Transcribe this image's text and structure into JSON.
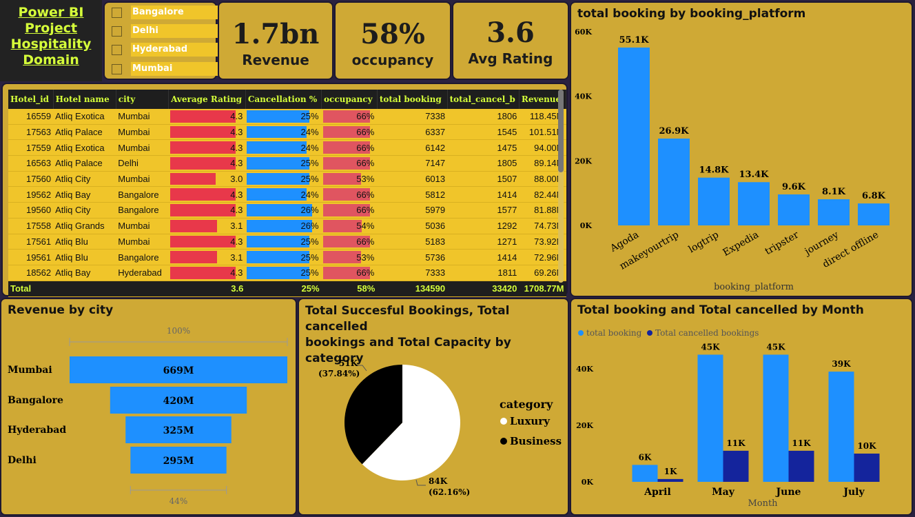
{
  "title_lines": [
    "Power BI",
    "Project",
    "Hospitality",
    "Domain"
  ],
  "slicer": [
    "Bangalore",
    "Delhi",
    "Hyderabad",
    "Mumbai"
  ],
  "kpis": [
    {
      "value": "1.7bn",
      "label": "Revenue"
    },
    {
      "value": "58%",
      "label": "occupancy"
    },
    {
      "value": "3.6",
      "label": "Avg Rating"
    }
  ],
  "table": {
    "columns": [
      "Hotel_id",
      "Hotel name",
      "city",
      "Average Rating",
      "Cancellation %",
      "occupancy",
      "total booking",
      "total_cancel_b",
      "Revenue"
    ],
    "rows": [
      [
        "16559",
        "Atliq Exotica",
        "Mumbai",
        "4.3",
        "25%",
        "66%",
        "7338",
        "1806",
        "118.45M"
      ],
      [
        "17563",
        "Atliq Palace",
        "Mumbai",
        "4.3",
        "24%",
        "66%",
        "6337",
        "1545",
        "101.51M"
      ],
      [
        "17559",
        "Atliq Exotica",
        "Mumbai",
        "4.3",
        "24%",
        "66%",
        "6142",
        "1475",
        "94.00M"
      ],
      [
        "16563",
        "Atliq Palace",
        "Delhi",
        "4.3",
        "25%",
        "66%",
        "7147",
        "1805",
        "89.14M"
      ],
      [
        "17560",
        "Atliq City",
        "Mumbai",
        "3.0",
        "25%",
        "53%",
        "6013",
        "1507",
        "88.00M"
      ],
      [
        "19562",
        "Atliq Bay",
        "Bangalore",
        "4.3",
        "24%",
        "66%",
        "5812",
        "1414",
        "82.44M"
      ],
      [
        "19560",
        "Atliq City",
        "Bangalore",
        "4.3",
        "26%",
        "66%",
        "5979",
        "1577",
        "81.88M"
      ],
      [
        "17558",
        "Atliq Grands",
        "Mumbai",
        "3.1",
        "26%",
        "54%",
        "5036",
        "1292",
        "74.73M"
      ],
      [
        "17561",
        "Atliq Blu",
        "Mumbai",
        "4.3",
        "25%",
        "66%",
        "5183",
        "1271",
        "73.92M"
      ],
      [
        "19561",
        "Atliq Blu",
        "Bangalore",
        "3.1",
        "25%",
        "53%",
        "5736",
        "1414",
        "72.96M"
      ],
      [
        "18562",
        "Atliq Bay",
        "Hyderabad",
        "4.3",
        "25%",
        "66%",
        "7333",
        "1811",
        "69.26M"
      ]
    ],
    "total": [
      "Total",
      "",
      "",
      "3.6",
      "25%",
      "58%",
      "134590",
      "33420",
      "1708.77M"
    ],
    "colors": {
      "rating": "#e8384a",
      "cancel": "#1e90ff",
      "occupancy": "#e05560"
    }
  },
  "platform_chart": {
    "title": "total booking by booking_platform",
    "xlabel": "booking_platform",
    "yticks": [
      "0K",
      "20K",
      "40K",
      "60K"
    ]
  },
  "city_chart": {
    "title": "Revenue by city",
    "top_label": "100%",
    "bottom_label": "44%"
  },
  "pie_chart": {
    "title_lines": [
      "Total Succesful Bookings, Total cancelled",
      "bookings and Total Capacity by category"
    ],
    "legend_title": "category"
  },
  "month_chart": {
    "title": "Total booking and Total cancelled by Month",
    "xlabel": "Month",
    "yticks": [
      "0K",
      "20K",
      "40K"
    ]
  },
  "chart_data": [
    {
      "type": "bar",
      "title": "total booking by booking_platform",
      "xlabel": "booking_platform",
      "ylabel": "",
      "categories": [
        "Agoda",
        "makeyourtrip",
        "logtrip",
        "Expedia",
        "tripster",
        "journey",
        "direct offline"
      ],
      "values": [
        55.1,
        26.9,
        14.8,
        13.4,
        9.6,
        8.1,
        6.8
      ],
      "labels": [
        "55.1K",
        "26.9K",
        "14.8K",
        "13.4K",
        "9.6K",
        "8.1K",
        "6.8K"
      ],
      "ylim": [
        0,
        60
      ],
      "color": "#1e90ff"
    },
    {
      "type": "bar",
      "title": "Revenue by city",
      "categories": [
        "Mumbai",
        "Bangalore",
        "Hyderabad",
        "Delhi"
      ],
      "values": [
        669,
        420,
        325,
        295
      ],
      "labels": [
        "669M",
        "420M",
        "325M",
        "295M"
      ],
      "color": "#1e90ff"
    },
    {
      "type": "pie",
      "title": "Total Succesful Bookings, Total cancelled bookings and Total Capacity by category",
      "categories": [
        "Luxury",
        "Business"
      ],
      "values": [
        84,
        51
      ],
      "labels": [
        "84K\n(62.16%)",
        "51K\n(37.84%)"
      ],
      "percent": [
        62.16,
        37.84
      ],
      "colors": [
        "#ffffff",
        "#000000"
      ]
    },
    {
      "type": "bar",
      "title": "Total booking and Total cancelled by Month",
      "xlabel": "Month",
      "categories": [
        "April",
        "May",
        "June",
        "July"
      ],
      "series": [
        {
          "name": "total booking",
          "values": [
            6,
            45,
            45,
            39
          ],
          "labels": [
            "6K",
            "45K",
            "45K",
            "39K"
          ],
          "color": "#1e90ff"
        },
        {
          "name": "Total cancelled bookings",
          "values": [
            1,
            11,
            11,
            10
          ],
          "labels": [
            "1K",
            "11K",
            "11K",
            "10K"
          ],
          "color": "#14249c"
        }
      ],
      "ylim": [
        0,
        50
      ],
      "legend": "top-left"
    }
  ]
}
